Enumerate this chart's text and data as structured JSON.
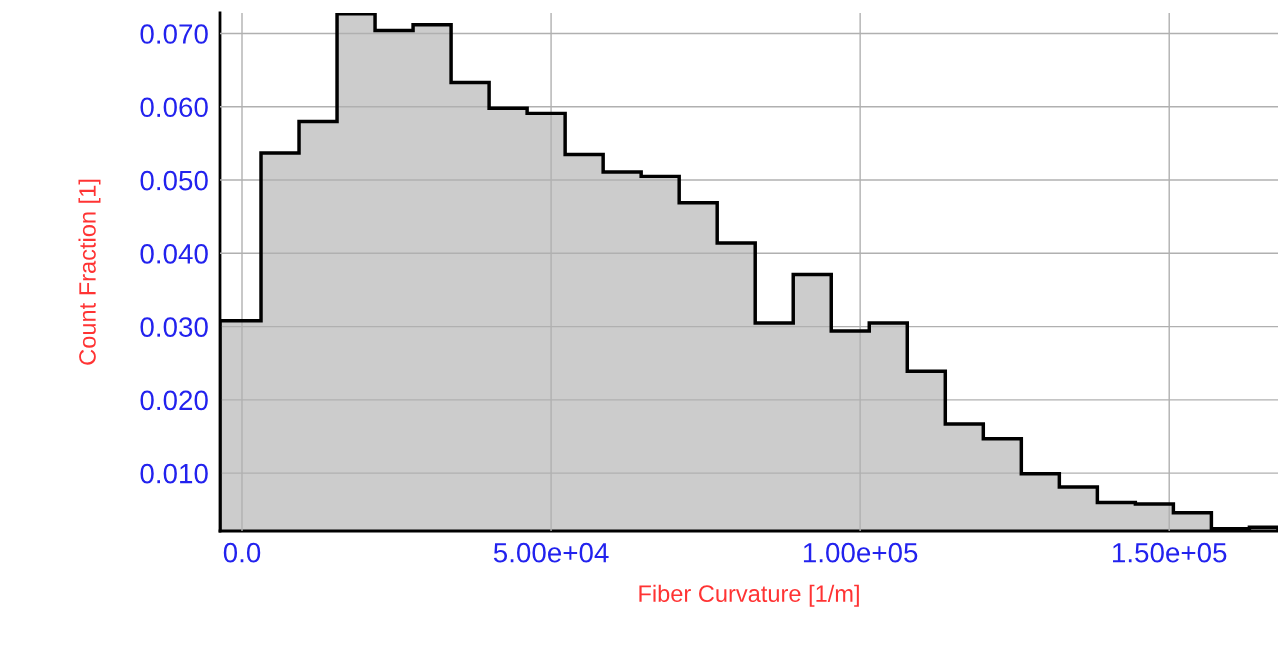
{
  "chart_data": {
    "type": "histogram",
    "xlabel": "Fiber Curvature [1/m]",
    "ylabel": "Count Fraction [1]",
    "bins": [
      -3560,
      3075,
      9225,
      15375,
      21525,
      27675,
      33825,
      39975,
      46125,
      52275,
      58425,
      64575,
      70725,
      76875,
      83025,
      89175,
      95325,
      101475,
      107625,
      113775,
      119925,
      126075,
      132225,
      138375,
      144525,
      150675,
      156825,
      162975,
      167600
    ],
    "values": [
      0.0308,
      0.0537,
      0.058,
      0.0727,
      0.0704,
      0.0712,
      0.0633,
      0.0598,
      0.0591,
      0.0535,
      0.0511,
      0.0505,
      0.0469,
      0.0414,
      0.0305,
      0.0371,
      0.0294,
      0.0305,
      0.0239,
      0.0167,
      0.0147,
      0.0099,
      0.0081,
      0.006,
      0.0058,
      0.0046,
      0.0024,
      0.0026
    ],
    "color": "#cccccc",
    "xlim": [
      -3560,
      167600
    ],
    "ylim": [
      0.0021,
      0.0728
    ],
    "xticks": [
      {
        "value": 0,
        "label": "0.0"
      },
      {
        "value": 50000,
        "label": "5.00e+04"
      },
      {
        "value": 100000,
        "label": "1.00e+05"
      },
      {
        "value": 150000,
        "label": "1.50e+05"
      }
    ],
    "yticks": [
      {
        "value": 0.01,
        "label": "0.010"
      },
      {
        "value": 0.02,
        "label": "0.020"
      },
      {
        "value": 0.03,
        "label": "0.030"
      },
      {
        "value": 0.04,
        "label": "0.040"
      },
      {
        "value": 0.05,
        "label": "0.050"
      },
      {
        "value": 0.06,
        "label": "0.060"
      },
      {
        "value": 0.07,
        "label": "0.070"
      }
    ],
    "grid": true
  }
}
